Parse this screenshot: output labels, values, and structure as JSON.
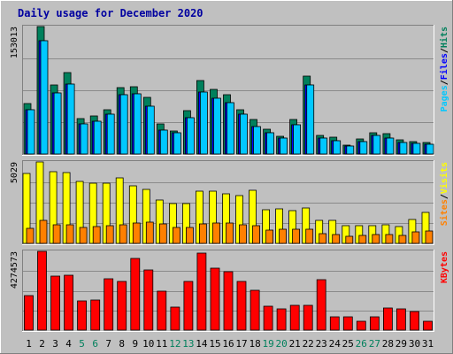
{
  "chart_data": {
    "type": "bar",
    "title": "Daily usage for December 2020",
    "categories": [
      "1",
      "2",
      "3",
      "4",
      "5",
      "6",
      "7",
      "8",
      "9",
      "10",
      "11",
      "12",
      "13",
      "14",
      "15",
      "16",
      "17",
      "18",
      "19",
      "20",
      "21",
      "22",
      "23",
      "24",
      "25",
      "26",
      "27",
      "28",
      "29",
      "30",
      "31"
    ],
    "weekend_categories": [
      "5",
      "6",
      "12",
      "13",
      "19",
      "20",
      "26",
      "27"
    ],
    "panels": [
      {
        "id": "hits-files-pages",
        "ymax": 153013,
        "ymax_label": "153013",
        "legend": [
          "Pages",
          "Files",
          "Hits"
        ],
        "series": [
          {
            "name": "Hits",
            "color": "#00805c",
            "values": [
              61000,
              153013,
              83000,
              98000,
              42000,
              46000,
              53000,
              80000,
              81000,
              68000,
              36000,
              28000,
              52000,
              88000,
              78000,
              71000,
              53000,
              41000,
              30000,
              21000,
              41000,
              94000,
              22000,
              20000,
              11000,
              18000,
              26000,
              24000,
              17000,
              15000,
              14000
            ]
          },
          {
            "name": "Files",
            "color": "#0000ff",
            "values": [
              53000,
              136000,
              73000,
              84000,
              36000,
              39000,
              48000,
              71000,
              72000,
              57000,
              29000,
              25000,
              44000,
              74000,
              67000,
              62000,
              48000,
              33000,
              26000,
              19000,
              35000,
              83000,
              19000,
              16000,
              9500,
              15000,
              22000,
              19000,
              14000,
              13000,
              12000
            ]
          },
          {
            "name": "Pages",
            "color": "#00c8ff",
            "values": [
              53000,
              136000,
              73000,
              84000,
              36000,
              39000,
              48000,
              71000,
              72000,
              57000,
              29000,
              25000,
              44000,
              74000,
              67000,
              62000,
              48000,
              33000,
              26000,
              19000,
              35000,
              83000,
              19000,
              16000,
              9500,
              15000,
              22000,
              19000,
              14000,
              13000,
              12000
            ]
          }
        ]
      },
      {
        "id": "visits-sites",
        "ymax": 5029,
        "ymax_label": "5029",
        "legend": [
          "Sites",
          "Visits"
        ],
        "series": [
          {
            "name": "Visits",
            "color": "#ffff00",
            "values": [
              4300,
              5029,
              4450,
              4400,
              3800,
              3700,
              3700,
              4050,
              3550,
              3350,
              2700,
              2450,
              2450,
              3200,
              3200,
              3050,
              2950,
              3300,
              2050,
              2150,
              2000,
              2200,
              1400,
              1400,
              1100,
              1100,
              1100,
              1150,
              1050,
              1450,
              1900
            ]
          },
          {
            "name": "Sites",
            "color": "#ff8000",
            "values": [
              950,
              1400,
              1150,
              1150,
              1000,
              1050,
              1100,
              1150,
              1250,
              1300,
              1200,
              1000,
              1000,
              1200,
              1250,
              1250,
              1150,
              1100,
              800,
              850,
              850,
              850,
              600,
              550,
              450,
              500,
              550,
              550,
              500,
              700,
              750
            ]
          }
        ]
      },
      {
        "id": "kbytes",
        "ymax": 4274573,
        "ymax_label": "4274573",
        "legend": [
          "KBytes"
        ],
        "series": [
          {
            "name": "KBytes",
            "color": "#ff0000",
            "values": [
              1850000,
              4274573,
              2950000,
              3000000,
              1600000,
              1650000,
              2800000,
              2650000,
              3900000,
              3250000,
              2100000,
              1250000,
              2650000,
              4200000,
              3350000,
              3150000,
              2650000,
              2150000,
              1300000,
              1150000,
              1350000,
              1350000,
              2750000,
              700000,
              700000,
              500000,
              700000,
              1200000,
              1150000,
              1000000,
              500000
            ]
          }
        ]
      }
    ]
  }
}
